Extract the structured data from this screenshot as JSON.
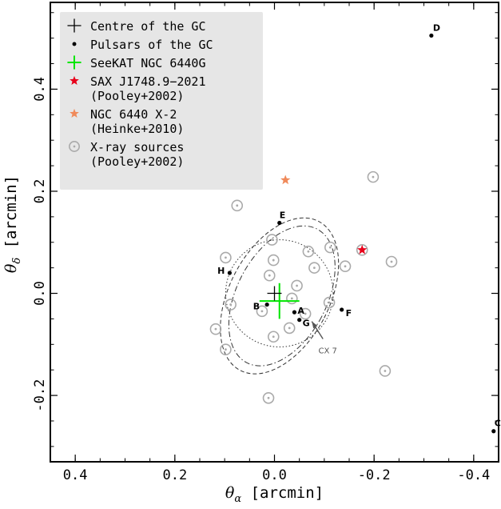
{
  "chart_data": {
    "type": "scatter",
    "xlabel": "θ",
    "xlabel_sub": "α",
    "xlabel_unit": " [arcmin]",
    "ylabel": "θ",
    "ylabel_sub": "δ",
    "ylabel_unit": " [arcmin]",
    "xlim": [
      0.45,
      -0.45
    ],
    "ylim": [
      -0.33,
      0.57
    ],
    "x_inverted": true,
    "xticks": [
      0.4,
      0.2,
      0.0,
      -0.2,
      -0.4
    ],
    "xtick_labels": [
      "0.4",
      "0.2",
      "0.0",
      "-0.2",
      "-0.4"
    ],
    "yticks": [
      -0.2,
      0.0,
      0.2,
      0.4
    ],
    "ytick_labels": [
      "-0.2",
      "0.0",
      "0.2",
      "0.4"
    ],
    "grid": false,
    "legend_position": "top-left",
    "legend": [
      {
        "marker": "plus-black",
        "label": [
          "Centre of the GC"
        ]
      },
      {
        "marker": "dot-black",
        "label": [
          "Pulsars of the GC"
        ]
      },
      {
        "marker": "plus-green",
        "label": [
          "SeeKAT NGC 6440G"
        ]
      },
      {
        "marker": "star-red",
        "label": [
          "SAX J1748.9−2021",
          "(Pooley+2002)"
        ]
      },
      {
        "marker": "star-orange",
        "label": [
          "NGC 6440 X-2",
          "(Heinke+2010)"
        ]
      },
      {
        "marker": "circle-grey",
        "label": [
          "X-ray sources",
          "(Pooley+2002)"
        ]
      }
    ],
    "series": [
      {
        "name": "Centre of the GC",
        "marker": "plus-black",
        "points": [
          {
            "x": 0.0,
            "y": 0.0
          }
        ]
      },
      {
        "name": "Pulsars of the GC",
        "marker": "dot-black",
        "points": [
          {
            "x": 0.015,
            "y": -0.022,
            "label": "B"
          },
          {
            "x": -0.04,
            "y": -0.037,
            "label": "A"
          },
          {
            "x": -0.05,
            "y": -0.052,
            "label": "G"
          },
          {
            "x": -0.135,
            "y": -0.032,
            "label": "F"
          },
          {
            "x": 0.09,
            "y": 0.04,
            "label": "H"
          },
          {
            "x": -0.01,
            "y": 0.138,
            "label": "E"
          },
          {
            "x": -0.315,
            "y": 0.505,
            "label": "D"
          },
          {
            "x": -0.44,
            "y": -0.27,
            "label": "C"
          }
        ]
      },
      {
        "name": "SeeKAT NGC 6440G",
        "marker": "plus-green",
        "points": [
          {
            "x": -0.01,
            "y": -0.015,
            "xerr": 0.04,
            "yerr": 0.035
          }
        ]
      },
      {
        "name": "SAX J1748.9−2021",
        "marker": "star-red",
        "points": [
          {
            "x": -0.176,
            "y": 0.085
          }
        ]
      },
      {
        "name": "NGC 6440 X-2",
        "marker": "star-orange",
        "points": [
          {
            "x": -0.022,
            "y": 0.222
          }
        ]
      },
      {
        "name": "X-ray sources",
        "marker": "circle-grey",
        "points": [
          {
            "x": -0.198,
            "y": 0.228
          },
          {
            "x": 0.075,
            "y": 0.172
          },
          {
            "x": 0.005,
            "y": 0.105
          },
          {
            "x": -0.068,
            "y": 0.082
          },
          {
            "x": -0.112,
            "y": 0.09
          },
          {
            "x": -0.176,
            "y": 0.085
          },
          {
            "x": 0.098,
            "y": 0.07
          },
          {
            "x": 0.002,
            "y": 0.065
          },
          {
            "x": -0.235,
            "y": 0.062
          },
          {
            "x": -0.08,
            "y": 0.05
          },
          {
            "x": -0.142,
            "y": 0.053
          },
          {
            "x": 0.01,
            "y": 0.035
          },
          {
            "x": -0.045,
            "y": 0.015
          },
          {
            "x": 0.088,
            "y": -0.022
          },
          {
            "x": -0.035,
            "y": -0.01
          },
          {
            "x": 0.025,
            "y": -0.035
          },
          {
            "x": -0.11,
            "y": -0.018
          },
          {
            "x": -0.062,
            "y": -0.04
          },
          {
            "x": -0.03,
            "y": -0.068
          },
          {
            "x": 0.118,
            "y": -0.07
          },
          {
            "x": 0.002,
            "y": -0.085
          },
          {
            "x": 0.098,
            "y": -0.11
          },
          {
            "x": -0.222,
            "y": -0.152
          },
          {
            "x": 0.012,
            "y": -0.205
          }
        ]
      }
    ],
    "annotations": [
      {
        "text": "CX 7",
        "x": -0.107,
        "y": -0.105,
        "arrow_to": {
          "x": -0.075,
          "y": -0.055
        }
      }
    ],
    "ellipses": [
      {
        "cx": -0.01,
        "cy": 0.0,
        "rx": 0.108,
        "ry": 0.105,
        "angle": 0,
        "style": "dotted"
      },
      {
        "cx": -0.01,
        "cy": -0.005,
        "rx": 0.1,
        "ry": 0.165,
        "angle": 28,
        "style": "dashed"
      },
      {
        "cx": -0.015,
        "cy": -0.005,
        "rx": 0.09,
        "ry": 0.148,
        "angle": 28,
        "style": "dashdot"
      }
    ],
    "colors": {
      "green": "#00e600",
      "red": "#e8001a",
      "orange": "#f08a5a",
      "grey": "#aaaaaa",
      "legend_bg": "#e6e6e6",
      "annotation": "#555555"
    }
  }
}
